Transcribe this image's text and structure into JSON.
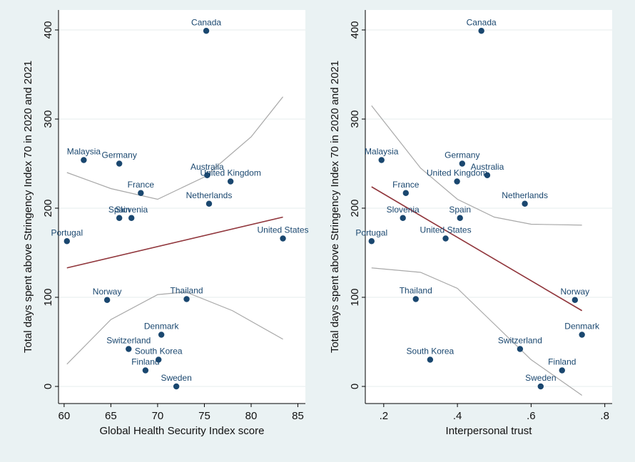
{
  "chart_data": [
    {
      "type": "scatter",
      "ylabel": "Total days spent above Stringency Index 70 in 2020 and 2021",
      "xlabel": "Global Health Security Index score",
      "x": [
        75.2,
        62.1,
        65.9,
        75.3,
        77.8,
        68.2,
        75.5,
        65.9,
        67.2,
        60.3,
        83.4,
        64.6,
        73.1,
        70.4,
        66.9,
        70.1,
        68.7,
        72.0
      ],
      "values": [
        399,
        254,
        250,
        237,
        230,
        217,
        205,
        189,
        189,
        163,
        166,
        97,
        98,
        58,
        42,
        30,
        18,
        0
      ],
      "point_labels": [
        "Canada",
        "Malaysia",
        "Germany",
        "Australia",
        "United Kingdom",
        "France",
        "Netherlands",
        "Spain",
        "Slovenia",
        "Portugal",
        "United States",
        "Norway",
        "Thailand",
        "Denmark",
        "Switzerland",
        "South Korea",
        "Finland",
        "Sweden"
      ],
      "color": "#1a476f",
      "fit_line": {
        "color": "#90353b",
        "x": [
          60.3,
          83.4
        ],
        "values": [
          133,
          190
        ]
      },
      "ci_upper": {
        "color": "#a8a8a8",
        "x": [
          60.3,
          65,
          70,
          75,
          80,
          83.4
        ],
        "values": [
          240,
          222,
          210,
          235,
          280,
          325
        ]
      },
      "ci_lower": {
        "color": "#a8a8a8",
        "x": [
          60.3,
          65,
          70,
          73,
          78,
          83.4
        ],
        "values": [
          25,
          75,
          103,
          106,
          85,
          53
        ]
      },
      "xlim": [
        59.4,
        85.8
      ],
      "ylim": [
        -19.2,
        422.4
      ],
      "xticks": [
        60,
        65,
        70,
        75,
        80,
        85
      ],
      "yticks": [
        0,
        100,
        200,
        300,
        400
      ]
    },
    {
      "type": "scatter",
      "ylabel": "Total days spent above Stringency Index 70 in 2020 and 2021",
      "xlabel": "Interpersonal trust",
      "x": [
        0.465,
        0.194,
        0.413,
        0.481,
        0.399,
        0.26,
        0.583,
        0.407,
        0.252,
        0.167,
        0.368,
        0.719,
        0.287,
        0.738,
        0.57,
        0.326,
        0.684,
        0.626
      ],
      "values": [
        399,
        254,
        250,
        237,
        230,
        217,
        205,
        189,
        189,
        163,
        166,
        97,
        98,
        58,
        42,
        30,
        18,
        0
      ],
      "point_labels": [
        "Canada",
        "Malaysia",
        "Germany",
        "Australia",
        "United Kingdom",
        "France",
        "Netherlands",
        "Spain",
        "Slovenia",
        "Portugal",
        "United States",
        "Norway",
        "Thailand",
        "Denmark",
        "Switzerland",
        "South Korea",
        "Finland",
        "Sweden"
      ],
      "color": "#1a476f",
      "fit_line": {
        "color": "#90353b",
        "x": [
          0.167,
          0.738
        ],
        "values": [
          224,
          85
        ]
      },
      "ci_upper": {
        "color": "#a8a8a8",
        "x": [
          0.167,
          0.3,
          0.4,
          0.5,
          0.6,
          0.738
        ],
        "values": [
          315,
          245,
          210,
          190,
          182,
          181
        ]
      },
      "ci_lower": {
        "color": "#a8a8a8",
        "x": [
          0.167,
          0.3,
          0.4,
          0.5,
          0.6,
          0.738
        ],
        "values": [
          133,
          128,
          110,
          70,
          30,
          -10
        ]
      },
      "xlim": [
        0.15,
        0.82
      ],
      "ylim": [
        -19.2,
        422.4
      ],
      "xticks": [
        {
          "value": 0.2,
          "label": ".2"
        },
        {
          "value": 0.4,
          "label": ".4"
        },
        {
          "value": 0.6,
          "label": ".6"
        },
        {
          "value": 0.8,
          "label": ".8"
        }
      ],
      "yticks": [
        0,
        100,
        200,
        300,
        400
      ]
    }
  ]
}
